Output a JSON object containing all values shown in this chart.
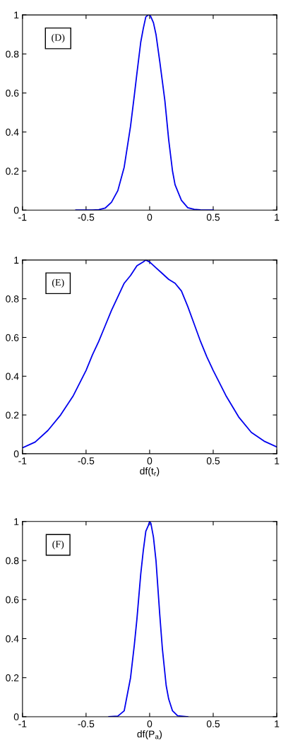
{
  "chart_data": [
    {
      "type": "line",
      "annotations": [
        "(D)"
      ],
      "xlim": [
        -1,
        1
      ],
      "ylim": [
        0,
        1
      ],
      "xticks": [
        -1,
        -0.5,
        0,
        0.5,
        1
      ],
      "yticks": [
        0,
        0.2,
        0.4,
        0.6,
        0.8,
        1
      ],
      "grid": false,
      "x": [
        -0.58,
        -0.45,
        -0.4,
        -0.35,
        -0.3,
        -0.25,
        -0.2,
        -0.15,
        -0.12,
        -0.1,
        -0.07,
        -0.05,
        -0.03,
        -0.01,
        0,
        0.01,
        0.03,
        0.05,
        0.08,
        0.1,
        0.12,
        0.15,
        0.18,
        0.2,
        0.25,
        0.3,
        0.35,
        0.4,
        0.5
      ],
      "series": [
        {
          "color": "#0000ee",
          "values": [
            0,
            0,
            0.002,
            0.01,
            0.04,
            0.1,
            0.22,
            0.43,
            0.59,
            0.7,
            0.86,
            0.93,
            0.99,
            1,
            1,
            0.99,
            0.96,
            0.9,
            0.76,
            0.66,
            0.56,
            0.36,
            0.2,
            0.13,
            0.05,
            0.012,
            0.004,
            0.001,
            0
          ]
        }
      ]
    },
    {
      "type": "line",
      "annotations": [
        "(E)"
      ],
      "xlabel": "df(t$_{r}$)",
      "xlim": [
        -1,
        1
      ],
      "ylim": [
        0,
        1
      ],
      "xticks": [
        -1,
        -0.5,
        0,
        0.5,
        1
      ],
      "yticks": [
        0,
        0.2,
        0.4,
        0.6,
        0.8,
        1
      ],
      "grid": false,
      "x": [
        -1,
        -0.9,
        -0.8,
        -0.7,
        -0.6,
        -0.5,
        -0.45,
        -0.4,
        -0.35,
        -0.3,
        -0.25,
        -0.2,
        -0.15,
        -0.1,
        -0.05,
        -0.03,
        0,
        0.05,
        0.1,
        0.15,
        0.2,
        0.25,
        0.3,
        0.35,
        0.4,
        0.45,
        0.5,
        0.6,
        0.7,
        0.8,
        0.9,
        1
      ],
      "series": [
        {
          "color": "#0000ee",
          "values": [
            0.03,
            0.06,
            0.12,
            0.2,
            0.3,
            0.43,
            0.51,
            0.58,
            0.66,
            0.74,
            0.81,
            0.88,
            0.92,
            0.97,
            0.99,
            1,
            0.99,
            0.96,
            0.93,
            0.9,
            0.88,
            0.84,
            0.76,
            0.67,
            0.58,
            0.5,
            0.43,
            0.3,
            0.19,
            0.11,
            0.065,
            0.035
          ]
        }
      ]
    },
    {
      "type": "line",
      "annotations": [
        "(F)"
      ],
      "xlabel": "df(P$_{a}$)",
      "xlim": [
        -1,
        1
      ],
      "ylim": [
        0,
        1
      ],
      "xticks": [
        -1,
        -0.5,
        0,
        0.5,
        1
      ],
      "yticks": [
        0,
        0.2,
        0.4,
        0.6,
        0.8,
        1
      ],
      "grid": false,
      "x": [
        -0.32,
        -0.25,
        -0.2,
        -0.15,
        -0.12,
        -0.1,
        -0.07,
        -0.05,
        -0.03,
        -0.01,
        0,
        0.01,
        0.03,
        0.05,
        0.08,
        0.1,
        0.13,
        0.15,
        0.18,
        0.22,
        0.3
      ],
      "series": [
        {
          "color": "#0000ee",
          "values": [
            0,
            0.003,
            0.03,
            0.2,
            0.37,
            0.5,
            0.73,
            0.85,
            0.95,
            0.98,
            1,
            0.99,
            0.92,
            0.8,
            0.52,
            0.35,
            0.16,
            0.09,
            0.03,
            0.005,
            0
          ]
        }
      ]
    }
  ]
}
